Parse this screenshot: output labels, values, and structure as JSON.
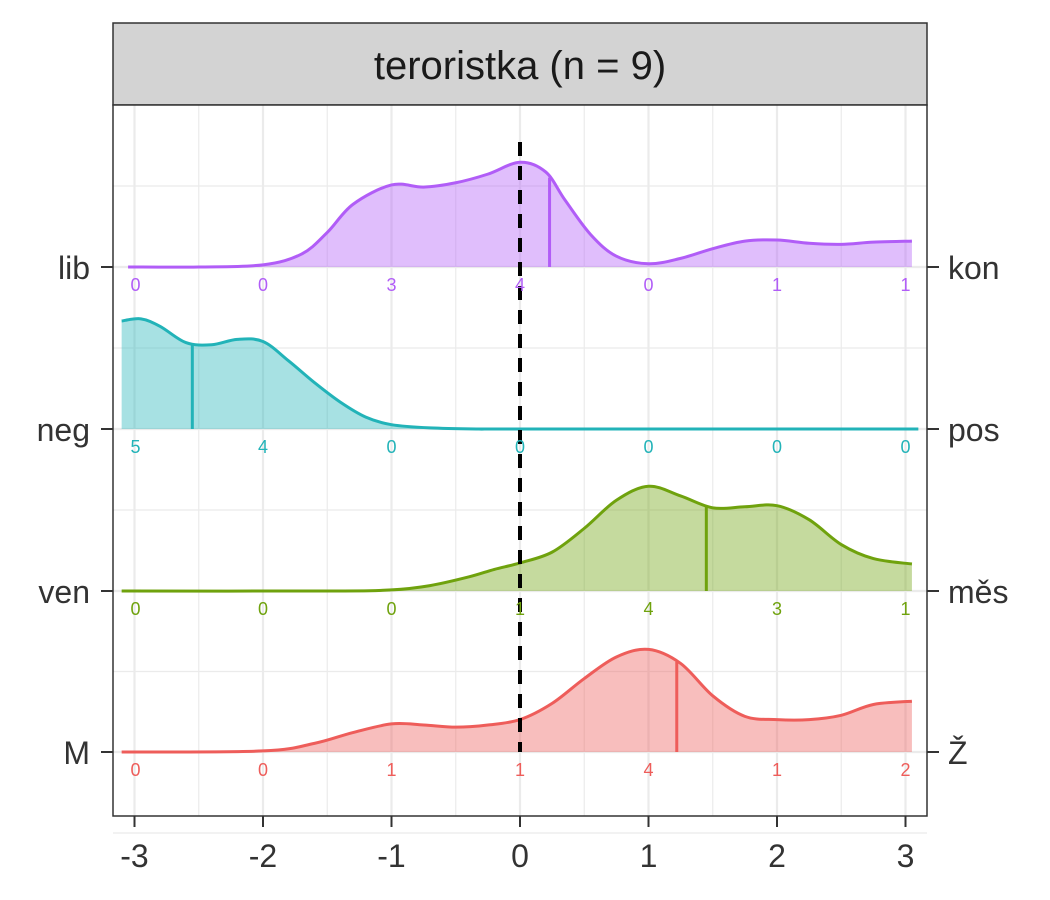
{
  "chart_data": {
    "type": "ridgeline",
    "facet_title": "teroristka (n = 9)",
    "x_ticks": [
      "-3",
      "-2",
      "-1",
      "0",
      "1",
      "2",
      "3"
    ],
    "xlim": [
      -3.1,
      3.1
    ],
    "reference_line_x": 0,
    "grid": true,
    "series": [
      {
        "left_label": "lib",
        "right_label": "kon",
        "color": "#B15DF7",
        "mean": 0.23,
        "counts": [
          0,
          0,
          3,
          4,
          0,
          1,
          1
        ],
        "density_x": [
          -3.05,
          -2.5,
          -2.0,
          -1.7,
          -1.5,
          -1.3,
          -1.0,
          -0.75,
          -0.5,
          -0.25,
          0.0,
          0.2,
          0.35,
          0.55,
          0.75,
          1.0,
          1.25,
          1.5,
          1.75,
          2.0,
          2.25,
          2.5,
          2.75,
          3.05
        ],
        "density_y": [
          0.0,
          0.0,
          0.02,
          0.12,
          0.32,
          0.58,
          0.76,
          0.74,
          0.78,
          0.86,
          0.97,
          0.88,
          0.62,
          0.3,
          0.1,
          0.03,
          0.08,
          0.17,
          0.24,
          0.25,
          0.22,
          0.21,
          0.23,
          0.24
        ]
      },
      {
        "left_label": "neg",
        "right_label": "pos",
        "color": "#22B3B8",
        "mean": -2.55,
        "counts": [
          5,
          4,
          0,
          0,
          0,
          0,
          0
        ],
        "density_x": [
          -3.1,
          -2.95,
          -2.8,
          -2.6,
          -2.4,
          -2.2,
          -2.0,
          -1.8,
          -1.6,
          -1.4,
          -1.2,
          -1.0,
          -0.7,
          -0.3,
          0.0,
          3.1
        ],
        "density_y": [
          1.0,
          1.02,
          0.95,
          0.8,
          0.78,
          0.83,
          0.81,
          0.63,
          0.43,
          0.25,
          0.11,
          0.04,
          0.01,
          0.0,
          0.0,
          0.0
        ],
        "fill_end_x": -0.3
      },
      {
        "left_label": "ven",
        "right_label": "měs",
        "color": "#6FA20D",
        "mean": 1.45,
        "counts": [
          0,
          0,
          0,
          1,
          4,
          3,
          1
        ],
        "density_x": [
          -3.1,
          -1.5,
          -1.0,
          -0.7,
          -0.4,
          -0.2,
          0.0,
          0.25,
          0.5,
          0.75,
          1.0,
          1.25,
          1.5,
          1.75,
          2.0,
          2.25,
          2.5,
          2.75,
          3.05
        ],
        "density_y": [
          0.0,
          0.0,
          0.01,
          0.05,
          0.13,
          0.2,
          0.26,
          0.36,
          0.58,
          0.84,
          0.97,
          0.88,
          0.77,
          0.78,
          0.79,
          0.66,
          0.43,
          0.3,
          0.25
        ],
        "fill_start_x": -1.0
      },
      {
        "left_label": "M",
        "right_label": "Ž",
        "color": "#EE5D5A",
        "mean": 1.22,
        "counts": [
          0,
          0,
          1,
          1,
          4,
          1,
          2
        ],
        "density_x": [
          -3.1,
          -2.0,
          -1.6,
          -1.3,
          -1.0,
          -0.75,
          -0.5,
          -0.25,
          0.0,
          0.25,
          0.5,
          0.75,
          1.0,
          1.25,
          1.5,
          1.75,
          2.0,
          2.25,
          2.5,
          2.75,
          3.05
        ],
        "density_y": [
          0.0,
          0.01,
          0.08,
          0.18,
          0.26,
          0.25,
          0.23,
          0.25,
          0.3,
          0.45,
          0.68,
          0.88,
          0.95,
          0.82,
          0.52,
          0.33,
          0.3,
          0.3,
          0.34,
          0.44,
          0.47
        ],
        "fill_start_x": -2.0
      }
    ]
  }
}
